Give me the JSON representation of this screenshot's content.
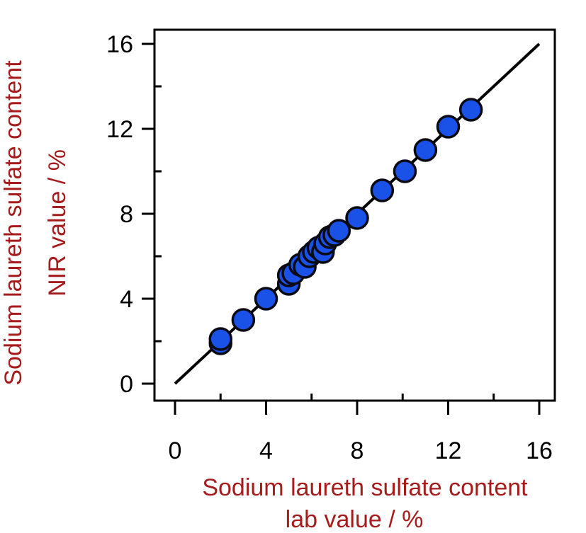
{
  "chart_data": {
    "type": "scatter",
    "title": "",
    "xlabel_lines": [
      "Sodium laureth sulfate content",
      "lab value / %"
    ],
    "ylabel_lines": [
      "Sodium laureth sulfate content",
      "NIR value / %"
    ],
    "xlim": [
      0,
      16
    ],
    "ylim": [
      0,
      16
    ],
    "x_ticks": [
      0,
      4,
      8,
      12,
      16
    ],
    "y_ticks": [
      0,
      4,
      8,
      12,
      16
    ],
    "x_tick_labels": [
      "0",
      "4",
      "8",
      "12",
      "16"
    ],
    "y_tick_labels": [
      "0",
      "4",
      "8",
      "12",
      "16"
    ],
    "grid": false,
    "legend": "none",
    "points": [
      {
        "x": 2.0,
        "y": 1.9
      },
      {
        "x": 2.0,
        "y": 2.1
      },
      {
        "x": 3.0,
        "y": 3.0
      },
      {
        "x": 4.0,
        "y": 4.0
      },
      {
        "x": 5.0,
        "y": 4.7
      },
      {
        "x": 5.0,
        "y": 5.1
      },
      {
        "x": 5.2,
        "y": 5.2
      },
      {
        "x": 5.5,
        "y": 5.6
      },
      {
        "x": 5.7,
        "y": 5.5
      },
      {
        "x": 5.9,
        "y": 6.0
      },
      {
        "x": 6.1,
        "y": 6.2
      },
      {
        "x": 6.3,
        "y": 6.4
      },
      {
        "x": 6.5,
        "y": 6.2
      },
      {
        "x": 6.6,
        "y": 6.6
      },
      {
        "x": 6.8,
        "y": 6.9
      },
      {
        "x": 7.0,
        "y": 7.0
      },
      {
        "x": 7.2,
        "y": 7.2
      },
      {
        "x": 8.0,
        "y": 7.8
      },
      {
        "x": 9.1,
        "y": 9.1
      },
      {
        "x": 10.1,
        "y": 10.0
      },
      {
        "x": 11.0,
        "y": 11.0
      },
      {
        "x": 12.0,
        "y": 12.1
      },
      {
        "x": 13.0,
        "y": 12.9
      }
    ],
    "reference_line": {
      "x": [
        0,
        16
      ],
      "y": [
        0,
        16
      ]
    },
    "colors": {
      "marker_fill": "#1a52e8",
      "marker_edge": "#0a0a14",
      "line": "#000000",
      "axis_title": "#a61b1b"
    }
  }
}
